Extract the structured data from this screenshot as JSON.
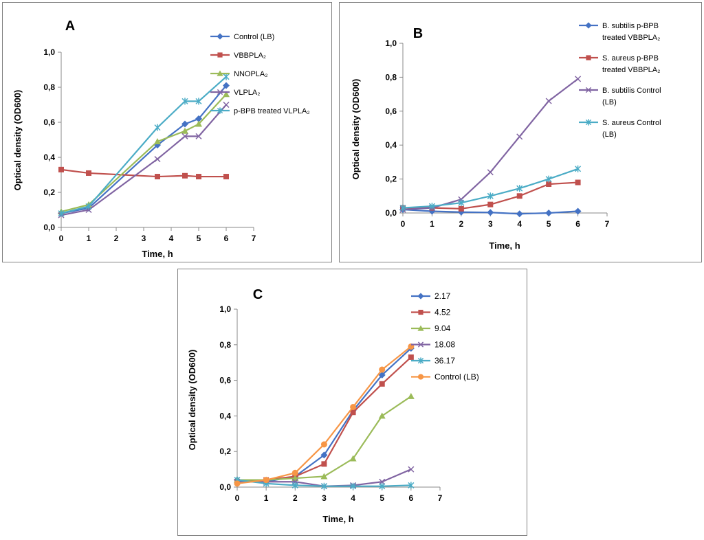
{
  "chart_data": [
    {
      "panel": "A",
      "type": "line",
      "xlabel": "Time, h",
      "ylabel": "Optical density (OD600)",
      "xlim": [
        0,
        7
      ],
      "ylim": [
        0,
        1.0
      ],
      "xticks": [
        "0",
        "1",
        "2",
        "3",
        "4",
        "5",
        "6",
        "7"
      ],
      "yticks": [
        "0,0",
        "0,2",
        "0,4",
        "0,6",
        "0,8",
        "1,0"
      ],
      "legend_position": "top-right",
      "series": [
        {
          "name": "Control (LB)",
          "color": "#4472C4",
          "marker": "diamond",
          "x": [
            0,
            1,
            3.5,
            4.5,
            5,
            6
          ],
          "y": [
            0.08,
            0.11,
            0.47,
            0.59,
            0.62,
            0.81
          ]
        },
        {
          "name": "VBBPLA₂",
          "color": "#C0504D",
          "marker": "square",
          "x": [
            0,
            1,
            3.5,
            4.5,
            5,
            6
          ],
          "y": [
            0.33,
            0.31,
            0.29,
            0.295,
            0.29,
            0.29
          ]
        },
        {
          "name": "NNOPLA₂",
          "color": "#9BBB59",
          "marker": "triangle",
          "x": [
            0,
            1,
            3.5,
            4.5,
            5,
            6
          ],
          "y": [
            0.09,
            0.13,
            0.49,
            0.55,
            0.59,
            0.76
          ]
        },
        {
          "name": "VLPLA₂",
          "color": "#8064A2",
          "marker": "x",
          "x": [
            0,
            1,
            3.5,
            4.5,
            5,
            6
          ],
          "y": [
            0.07,
            0.1,
            0.39,
            0.52,
            0.52,
            0.7
          ]
        },
        {
          "name": "p-BPB treated  VLPLA₂",
          "color": "#4BACC6",
          "marker": "star",
          "x": [
            0,
            1,
            3.5,
            4.5,
            5,
            6
          ],
          "y": [
            0.08,
            0.12,
            0.57,
            0.72,
            0.72,
            0.86
          ]
        }
      ]
    },
    {
      "panel": "B",
      "type": "line",
      "xlabel": "Time, h",
      "ylabel": "Optical density (OD600)",
      "xlim": [
        0,
        7
      ],
      "ylim": [
        0,
        1.0
      ],
      "xticks": [
        "0",
        "1",
        "2",
        "3",
        "4",
        "5",
        "6",
        "7"
      ],
      "yticks": [
        "0,0",
        "0,2",
        "0,4",
        "0,6",
        "0,8",
        "1,0"
      ],
      "legend_position": "top-right",
      "series": [
        {
          "name_lines": [
            "B. subtilis p-BPB",
            "treated VBBPLA₂"
          ],
          "color": "#4472C4",
          "marker": "diamond",
          "x": [
            0,
            1,
            2,
            3,
            4,
            5,
            6
          ],
          "y": [
            0.02,
            0.01,
            0.005,
            0.003,
            -0.005,
            0.0,
            0.01
          ]
        },
        {
          "name_lines": [
            "S. aureus p-BPB",
            "treated VBBPLA₂"
          ],
          "color": "#C0504D",
          "marker": "square",
          "x": [
            0,
            1,
            2,
            3,
            4,
            5,
            6
          ],
          "y": [
            0.03,
            0.03,
            0.025,
            0.05,
            0.1,
            0.17,
            0.18
          ]
        },
        {
          "name_lines": [
            "B. subtilis Control",
            "(LB)"
          ],
          "color": "#8064A2",
          "marker": "x",
          "x": [
            0,
            1,
            2,
            3,
            4,
            5,
            6
          ],
          "y": [
            0.02,
            0.03,
            0.08,
            0.24,
            0.45,
            0.66,
            0.79
          ]
        },
        {
          "name_lines": [
            "S. aureus Control",
            "(LB)"
          ],
          "color": "#4BACC6",
          "marker": "star",
          "x": [
            0,
            1,
            2,
            3,
            4,
            5,
            6
          ],
          "y": [
            0.03,
            0.04,
            0.06,
            0.1,
            0.145,
            0.2,
            0.26
          ]
        }
      ]
    },
    {
      "panel": "C",
      "type": "line",
      "xlabel": "Time, h",
      "ylabel": "Optical density (OD600)",
      "xlim": [
        0,
        7
      ],
      "ylim": [
        0,
        1.0
      ],
      "xticks": [
        "0",
        "1",
        "2",
        "3",
        "4",
        "5",
        "6",
        "7"
      ],
      "yticks": [
        "0,0",
        "0,2",
        "0,4",
        "0,6",
        "0,8",
        "1,0"
      ],
      "legend_position": "top-right",
      "series": [
        {
          "name": "2.17",
          "color": "#4472C4",
          "marker": "diamond",
          "x": [
            0,
            1,
            2,
            3,
            4,
            5,
            6
          ],
          "y": [
            0.04,
            0.03,
            0.06,
            0.18,
            0.43,
            0.63,
            0.78
          ]
        },
        {
          "name": "4.52",
          "color": "#C0504D",
          "marker": "square",
          "x": [
            0,
            1,
            2,
            3,
            4,
            5,
            6
          ],
          "y": [
            0.03,
            0.04,
            0.06,
            0.13,
            0.42,
            0.58,
            0.73
          ]
        },
        {
          "name": "9.04",
          "color": "#9BBB59",
          "marker": "triangle",
          "x": [
            0,
            1,
            2,
            3,
            4,
            5,
            6
          ],
          "y": [
            0.04,
            0.04,
            0.05,
            0.06,
            0.16,
            0.4,
            0.51
          ]
        },
        {
          "name": "18.08",
          "color": "#8064A2",
          "marker": "x",
          "x": [
            0,
            1,
            2,
            3,
            4,
            5,
            6
          ],
          "y": [
            0.03,
            0.03,
            0.03,
            0.005,
            0.01,
            0.03,
            0.1
          ]
        },
        {
          "name": "36.17",
          "color": "#4BACC6",
          "marker": "star",
          "x": [
            0,
            1,
            2,
            3,
            4,
            5,
            6
          ],
          "y": [
            0.04,
            0.02,
            0.01,
            0.005,
            0.005,
            0.005,
            0.01
          ]
        },
        {
          "name": "Control (LB)",
          "color": "#F79646",
          "marker": "circle",
          "x": [
            0,
            1,
            2,
            3,
            4,
            5,
            6
          ],
          "y": [
            0.02,
            0.04,
            0.08,
            0.24,
            0.45,
            0.66,
            0.79
          ]
        }
      ]
    }
  ]
}
